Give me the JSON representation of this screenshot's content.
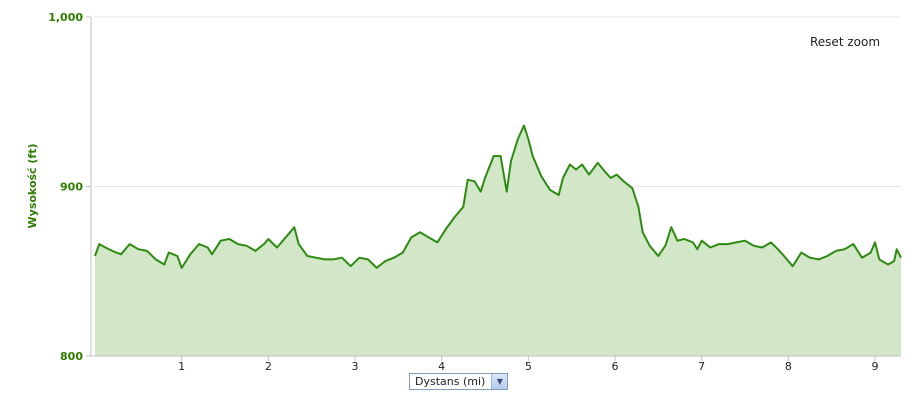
{
  "chart_data": {
    "type": "area",
    "title": "",
    "xlabel": "Dystans (mi)",
    "ylabel": "Wysokość (ft)",
    "xlim": [
      0,
      9.3
    ],
    "ylim": [
      800,
      1000
    ],
    "x_ticks": [
      1,
      2,
      3,
      4,
      5,
      6,
      7,
      8,
      9
    ],
    "y_ticks": [
      800,
      900,
      1000
    ],
    "y_tick_labels": [
      "800",
      "900",
      "1,000"
    ],
    "grid": "horizontal",
    "colors": {
      "line": "#2e8b12",
      "fill": "#d2e7c8",
      "axis_text": "#2e7d00"
    },
    "series": [
      {
        "values": [
          [
            0.0,
            859
          ],
          [
            0.05,
            866
          ],
          [
            0.12,
            864
          ],
          [
            0.2,
            862
          ],
          [
            0.3,
            860
          ],
          [
            0.4,
            866
          ],
          [
            0.5,
            863
          ],
          [
            0.6,
            862
          ],
          [
            0.7,
            857
          ],
          [
            0.8,
            854
          ],
          [
            0.85,
            861
          ],
          [
            0.95,
            859
          ],
          [
            1.0,
            852
          ],
          [
            1.1,
            860
          ],
          [
            1.2,
            866
          ],
          [
            1.3,
            864
          ],
          [
            1.35,
            860
          ],
          [
            1.45,
            868
          ],
          [
            1.55,
            869
          ],
          [
            1.65,
            866
          ],
          [
            1.75,
            865
          ],
          [
            1.85,
            862
          ],
          [
            1.95,
            866
          ],
          [
            2.0,
            869
          ],
          [
            2.1,
            864
          ],
          [
            2.2,
            870
          ],
          [
            2.3,
            876
          ],
          [
            2.35,
            866
          ],
          [
            2.45,
            859
          ],
          [
            2.55,
            858
          ],
          [
            2.65,
            857
          ],
          [
            2.75,
            857
          ],
          [
            2.85,
            858
          ],
          [
            2.95,
            853
          ],
          [
            3.05,
            858
          ],
          [
            3.15,
            857
          ],
          [
            3.25,
            852
          ],
          [
            3.35,
            856
          ],
          [
            3.45,
            858
          ],
          [
            3.55,
            861
          ],
          [
            3.65,
            870
          ],
          [
            3.75,
            873
          ],
          [
            3.85,
            870
          ],
          [
            3.95,
            867
          ],
          [
            4.05,
            875
          ],
          [
            4.15,
            882
          ],
          [
            4.25,
            888
          ],
          [
            4.3,
            904
          ],
          [
            4.38,
            903
          ],
          [
            4.45,
            897
          ],
          [
            4.5,
            905
          ],
          [
            4.6,
            918
          ],
          [
            4.68,
            918
          ],
          [
            4.75,
            897
          ],
          [
            4.8,
            915
          ],
          [
            4.88,
            928
          ],
          [
            4.95,
            936
          ],
          [
            5.0,
            928
          ],
          [
            5.05,
            918
          ],
          [
            5.15,
            906
          ],
          [
            5.25,
            898
          ],
          [
            5.35,
            895
          ],
          [
            5.4,
            905
          ],
          [
            5.48,
            913
          ],
          [
            5.55,
            910
          ],
          [
            5.62,
            913
          ],
          [
            5.7,
            907
          ],
          [
            5.8,
            914
          ],
          [
            5.88,
            909
          ],
          [
            5.95,
            905
          ],
          [
            6.02,
            907
          ],
          [
            6.1,
            903
          ],
          [
            6.2,
            899
          ],
          [
            6.27,
            888
          ],
          [
            6.32,
            873
          ],
          [
            6.4,
            865
          ],
          [
            6.5,
            859
          ],
          [
            6.58,
            865
          ],
          [
            6.65,
            876
          ],
          [
            6.72,
            868
          ],
          [
            6.8,
            869
          ],
          [
            6.9,
            867
          ],
          [
            6.95,
            863
          ],
          [
            7.0,
            868
          ],
          [
            7.1,
            864
          ],
          [
            7.2,
            866
          ],
          [
            7.3,
            866
          ],
          [
            7.4,
            867
          ],
          [
            7.5,
            868
          ],
          [
            7.6,
            865
          ],
          [
            7.7,
            864
          ],
          [
            7.8,
            867
          ],
          [
            7.88,
            863
          ],
          [
            7.95,
            859
          ],
          [
            8.05,
            853
          ],
          [
            8.15,
            861
          ],
          [
            8.25,
            858
          ],
          [
            8.35,
            857
          ],
          [
            8.45,
            859
          ],
          [
            8.55,
            862
          ],
          [
            8.65,
            863
          ],
          [
            8.75,
            866
          ],
          [
            8.85,
            858
          ],
          [
            8.95,
            861
          ],
          [
            9.0,
            867
          ],
          [
            9.05,
            857
          ],
          [
            9.15,
            854
          ],
          [
            9.22,
            856
          ],
          [
            9.25,
            863
          ],
          [
            9.3,
            858
          ]
        ]
      }
    ],
    "legend": "none"
  },
  "ui": {
    "reset_zoom_label": "Reset zoom",
    "x_axis_selector_value": "Dystans (mi)",
    "dropdown_icon": "chevron-down-icon"
  }
}
